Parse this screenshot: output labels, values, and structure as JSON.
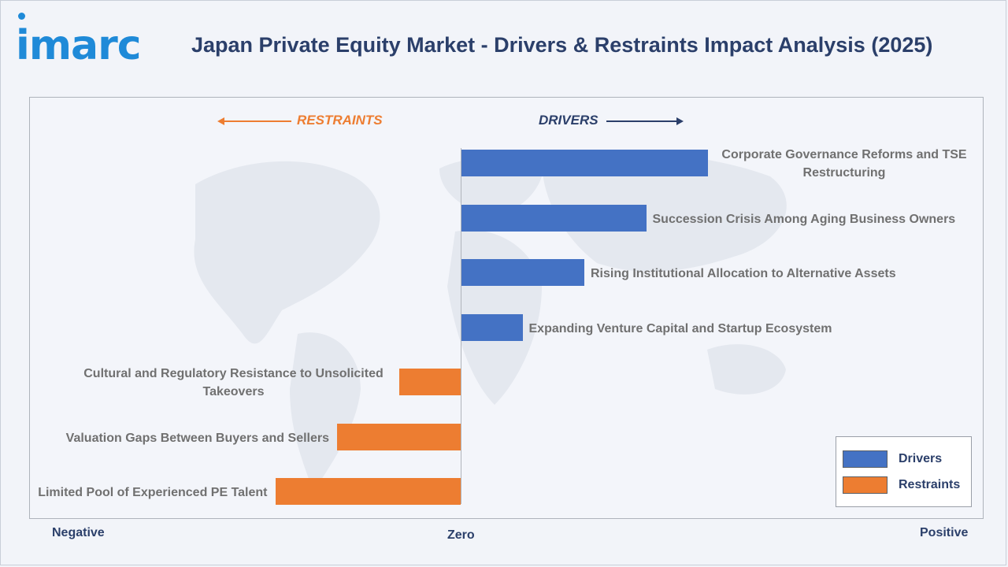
{
  "header": {
    "logo_text": "imarc",
    "title": "Japan Private Equity Market - Drivers & Restraints Impact Analysis (2025)"
  },
  "directions": {
    "restraints": "RESTRAINTS",
    "drivers": "DRIVERS"
  },
  "axis": {
    "negative": "Negative",
    "zero": "Zero",
    "positive": "Positive"
  },
  "legend": {
    "drivers": "Drivers",
    "restraints": "Restraints"
  },
  "colors": {
    "drivers": "#4472c4",
    "restraints": "#ed7d31",
    "title": "#2b3f6a",
    "logo": "#1f8ad8"
  },
  "chart_data": {
    "type": "bar",
    "orientation": "horizontal",
    "title": "Japan Private Equity Market - Drivers & Restraints Impact Analysis (2025)",
    "xlim": [
      -3,
      4
    ],
    "grid": false,
    "legend_position": "bottom-right",
    "categories": [
      "Corporate Governance Reforms and TSE Restructuring",
      "Succession Crisis Among Aging Business Owners",
      "Rising Institutional Allocation to Alternative Assets",
      "Expanding Venture Capital and Startup Ecosystem",
      "Cultural and Regulatory Resistance to Unsolicited Takeovers",
      "Valuation Gaps Between Buyers and Sellers",
      "Limited Pool of Experienced PE Talent"
    ],
    "series": [
      {
        "name": "Drivers",
        "values": [
          4,
          3,
          2,
          1,
          null,
          null,
          null
        ]
      },
      {
        "name": "Restraints",
        "values": [
          null,
          null,
          null,
          null,
          -1,
          -2,
          -3
        ]
      }
    ]
  }
}
